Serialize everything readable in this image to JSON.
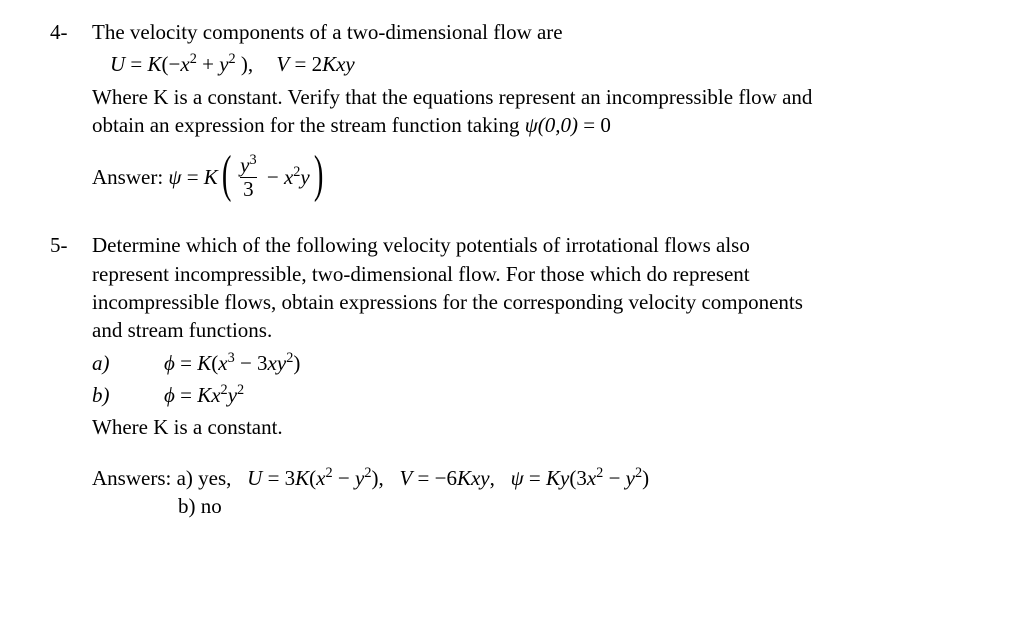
{
  "page": {
    "background_color": "#ffffff",
    "text_color": "#000000",
    "font_family": "Times New Roman",
    "base_fontsize_pt": 16
  },
  "problems": [
    {
      "number": "4-",
      "intro": "The velocity components of a two-dimensional flow are",
      "eq_u_lhs": "U",
      "eq_u_rhs": "K(−x² + y² ),",
      "eq_v_lhs": "V",
      "eq_v_rhs": "2Kxy",
      "desc1": "Where K is a constant. Verify that the equations represent an incompressible flow and",
      "desc2": "obtain an expression for the stream function taking ψ(0,0) = 0",
      "answer_label": "Answer:",
      "answer_psi": "ψ = K",
      "answer_frac_num": "y³",
      "answer_frac_den": "3",
      "answer_tail": " − x²y"
    },
    {
      "number": "5-",
      "desc1": "Determine which of the following velocity potentials of irrotational flows also",
      "desc2": "represent incompressible, two-dimensional flow. For those which do represent",
      "desc3": "incompressible flows, obtain expressions for the corresponding velocity components",
      "desc4": "and stream functions.",
      "items": [
        {
          "label": "a)",
          "eq": "ϕ = K(x³ − 3xy²)"
        },
        {
          "label": "b)",
          "eq": "ϕ = Kx²y²"
        }
      ],
      "footnote": "Where K is a constant.",
      "answers_label": "Answers:",
      "ans_a_label": "a) yes,",
      "ans_a_u": "U = 3K(x² − y²),",
      "ans_a_v": "V = −6Kxy,",
      "ans_a_psi": "ψ = Ky(3x² − y²)",
      "ans_b": "b) no"
    }
  ]
}
